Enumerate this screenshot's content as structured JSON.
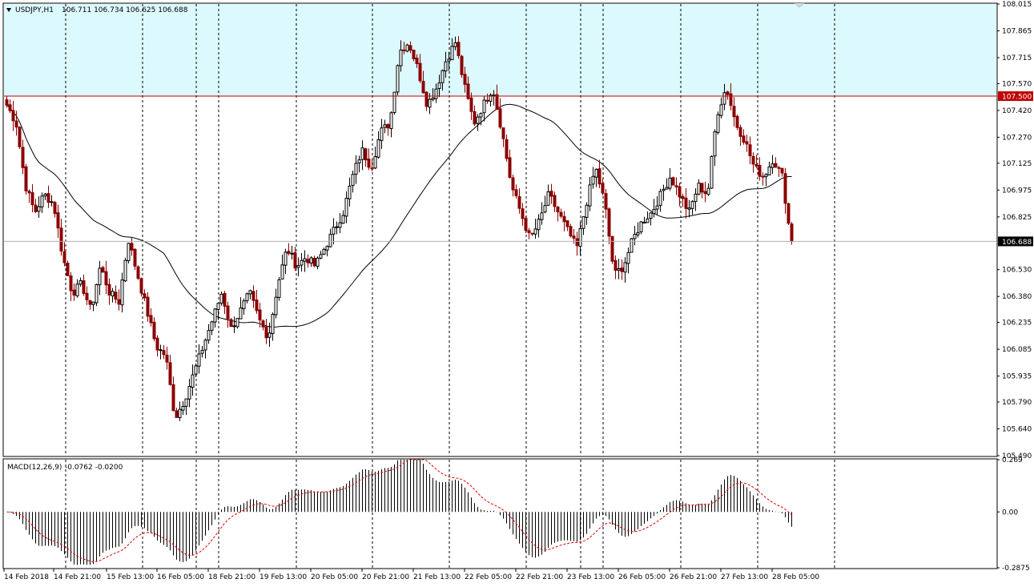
{
  "header": {
    "symbol_label": "USDJPY,H1",
    "ohlc_label": "106.711 106.734 106.625 106.688"
  },
  "macd_header": {
    "label": "MACD(12,26,9)",
    "values_label": "-0.0762 -0.0200"
  },
  "colors": {
    "background": "#ffffff",
    "resistance_zone": "#dcf9fd",
    "bull_candle": "#000000",
    "bear_candle": "#8b0000",
    "moving_average": "#000000",
    "resistance_line": "#c00000",
    "current_price_line": "#b0b0b0",
    "price_badge_resistance": "#c00000",
    "price_badge_current": "#000000",
    "macd_histogram": "#000000",
    "macd_signal": "#e00000",
    "grid": "#000000"
  },
  "chart_data": [
    {
      "type": "candlestick",
      "symbol": "USDJPY",
      "timeframe": "H1",
      "ylim": [
        105.49,
        108.015
      ],
      "y_ticks": [
        "108.015",
        "107.865",
        "107.715",
        "107.570",
        "107.420",
        "107.270",
        "107.125",
        "106.975",
        "106.825",
        "106.688",
        "106.530",
        "106.380",
        "106.235",
        "106.085",
        "105.935",
        "105.790",
        "105.640",
        "105.490"
      ],
      "x_tick_labels": [
        "14 Feb 2018",
        "14 Feb 21:00",
        "15 Feb 13:00",
        "16 Feb 05:00",
        "18 Feb 21:00",
        "19 Feb 13:00",
        "20 Feb 05:00",
        "20 Feb 21:00",
        "21 Feb 13:00",
        "22 Feb 05:00",
        "22 Feb 21:00",
        "23 Feb 13:00",
        "26 Feb 05:00",
        "26 Feb 21:00",
        "27 Feb 13:00",
        "28 Feb 05:00"
      ],
      "last_price": 106.688,
      "last_price_label": "106.688",
      "horizontal_line": 107.5,
      "horizontal_line_label": "107.500",
      "resistance_zone": [
        107.5,
        108.015
      ],
      "moving_average_shown": true,
      "price_path": [
        107.45,
        107.35,
        107.0,
        106.85,
        106.95,
        106.9,
        106.6,
        106.4,
        106.45,
        106.3,
        106.55,
        106.4,
        106.35,
        106.7,
        106.5,
        106.3,
        106.1,
        106.05,
        105.7,
        105.8,
        105.95,
        106.1,
        106.25,
        106.4,
        106.2,
        106.3,
        106.4,
        106.25,
        106.15,
        106.45,
        106.65,
        106.55,
        106.6,
        106.55,
        106.65,
        106.75,
        106.85,
        107.05,
        107.2,
        107.1,
        107.3,
        107.35,
        107.75,
        107.8,
        107.65,
        107.45,
        107.55,
        107.7,
        107.8,
        107.55,
        107.35,
        107.45,
        107.55,
        107.3,
        107.0,
        106.85,
        106.7,
        106.8,
        106.95,
        106.85,
        106.75,
        106.65,
        106.9,
        107.1,
        106.9,
        106.5,
        106.55,
        106.7,
        106.8,
        106.85,
        106.95,
        107.05,
        106.95,
        106.85,
        107.0,
        106.95,
        107.4,
        107.55,
        107.35,
        107.25,
        107.1,
        107.05,
        107.15,
        107.05,
        106.65
      ]
    },
    {
      "type": "histogram+line",
      "name": "MACD(12,26,9)",
      "macd": -0.0762,
      "signal": -0.02,
      "ylim": [
        -0.2875,
        0.269
      ],
      "y_ticks": [
        "0.269",
        "0.00",
        "-0.2875"
      ]
    }
  ]
}
